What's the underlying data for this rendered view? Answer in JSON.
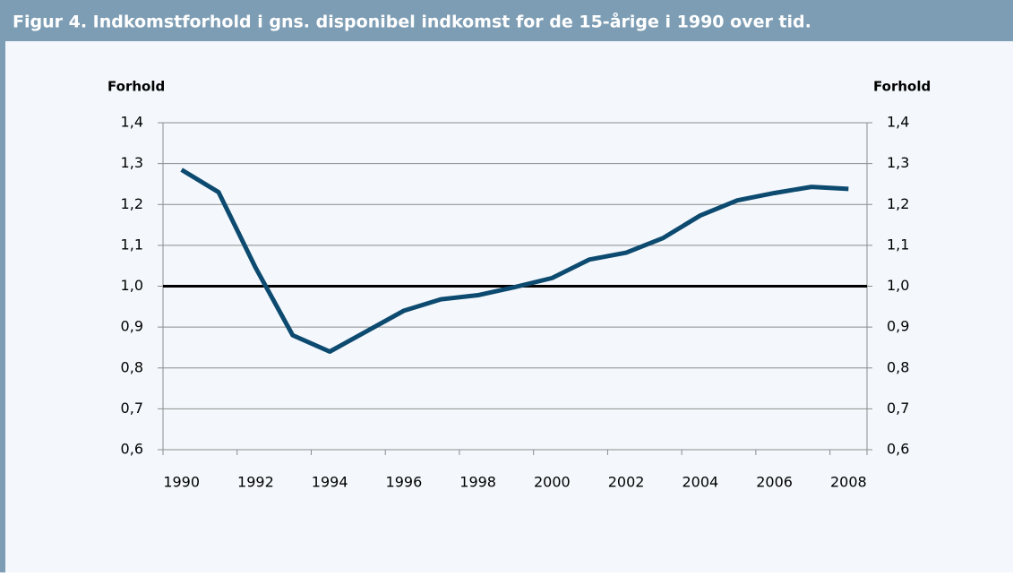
{
  "chart_data": {
    "type": "line",
    "title": "Figur 4. Indkomstforhold i gns. disponibel indkomst for de 15-årige i 1990 over tid.",
    "y_label": "Forhold",
    "y2_label": "Forhold",
    "categories": [
      1990,
      null,
      1992,
      null,
      1994,
      null,
      1996,
      null,
      1998,
      null,
      2000,
      null,
      2002,
      null,
      2004,
      null,
      2006,
      null,
      2008
    ],
    "series": [
      {
        "color": "#0d4a70",
        "values": [
          1.285,
          1.23,
          1.045,
          0.88,
          0.84,
          0.89,
          0.94,
          0.968,
          0.978,
          0.998,
          1.02,
          1.065,
          1.082,
          1.118,
          1.173,
          1.21,
          1.228,
          1.243,
          1.238
        ]
      }
    ],
    "reference_line": 1,
    "reference_color": "#000000",
    "ylim": [
      0.6,
      1.4
    ],
    "yticks": [
      {
        "value": 0.6,
        "label": "0,6"
      },
      {
        "value": 0.7,
        "label": "0,7"
      },
      {
        "value": 0.8,
        "label": "0,8"
      },
      {
        "value": 0.9,
        "label": "0,9"
      },
      {
        "value": 1.0,
        "label": "1,0"
      },
      {
        "value": 1.1,
        "label": "1,1"
      },
      {
        "value": 1.2,
        "label": "1,2"
      },
      {
        "value": 1.3,
        "label": "1,3"
      },
      {
        "value": 1.4,
        "label": "1,4"
      }
    ],
    "y2lim": [
      0.6,
      1.4
    ],
    "y2ticks": [
      {
        "value": 0.6,
        "label": "0,6"
      },
      {
        "value": 0.7,
        "label": "0,7"
      },
      {
        "value": 0.8,
        "label": "0,8"
      },
      {
        "value": 0.9,
        "label": "0,9"
      },
      {
        "value": 1.0,
        "label": "1,0"
      },
      {
        "value": 1.1,
        "label": "1,1"
      },
      {
        "value": 1.2,
        "label": "1,2"
      },
      {
        "value": 1.3,
        "label": "1,3"
      },
      {
        "value": 1.4,
        "label": "1,4"
      }
    ],
    "grid": true
  }
}
